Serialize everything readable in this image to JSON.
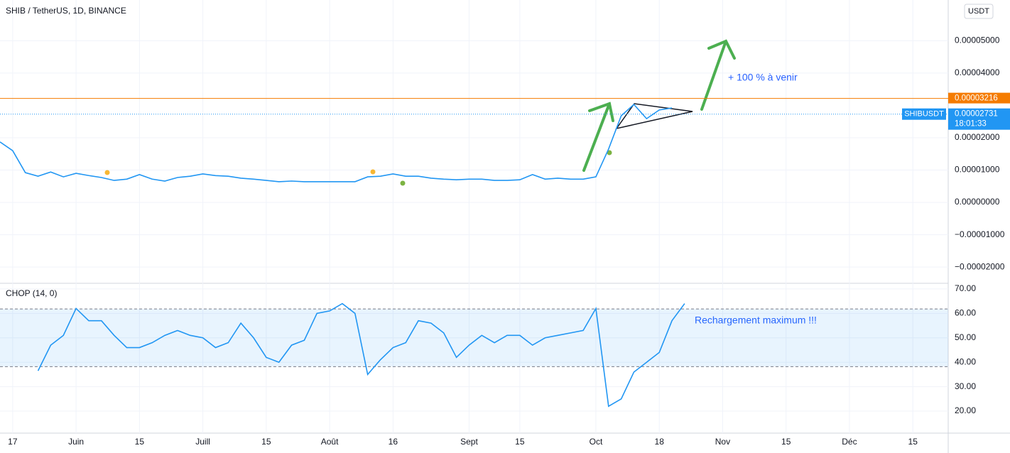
{
  "header": {
    "title": "SHIB / TetherUS, 1D, BINANCE",
    "currency": "USDT"
  },
  "chart_data": [
    {
      "type": "line",
      "name": "SHIBUSDT",
      "categories": [
        null,
        "17",
        null,
        null,
        null,
        null,
        "Juin",
        null,
        null,
        null,
        null,
        "15",
        null,
        null,
        null,
        null,
        "Juill",
        null,
        null,
        null,
        null,
        "15",
        null,
        null,
        null,
        null,
        "Août",
        null,
        null,
        null,
        null,
        "16",
        null,
        null,
        null,
        null,
        null,
        "Sept",
        null,
        null,
        null,
        "15",
        null,
        null,
        null,
        null,
        null,
        "Oct",
        null,
        null,
        null,
        null,
        "18",
        null,
        null,
        null,
        null,
        "Nov",
        null,
        null,
        null,
        null,
        "15",
        null,
        null,
        null,
        null,
        "Déc",
        null,
        null,
        null,
        null,
        "15",
        null,
        null,
        null,
        null
      ],
      "series": [
        {
          "name": "SHIBUSDT",
          "color": "#2196f3",
          "values": [
            1.87e-05,
            1.6e-05,
            9.2e-06,
            8.1e-06,
            9.4e-06,
            7.9e-06,
            9e-06,
            8.3e-06,
            7.7e-06,
            6.8e-06,
            7.2e-06,
            8.6e-06,
            7.2e-06,
            6.6e-06,
            7.7e-06,
            8.1e-06,
            8.8e-06,
            8.3e-06,
            8.1e-06,
            7.5e-06,
            7.2e-06,
            6.8e-06,
            6.4e-06,
            6.6e-06,
            6.4e-06,
            6.4e-06,
            6.4e-06,
            6.4e-06,
            6.4e-06,
            7.9e-06,
            8.1e-06,
            8.8e-06,
            8.1e-06,
            8.1e-06,
            7.5e-06,
            7.2e-06,
            7e-06,
            7.2e-06,
            7.2e-06,
            6.8e-06,
            6.8e-06,
            7e-06,
            8.6e-06,
            7.2e-06,
            7.5e-06,
            7.2e-06,
            7.2e-06,
            7.9e-06,
            1.65e-05,
            2.68e-05,
            3.03e-05,
            2.59e-05,
            2.86e-05,
            2.92e-05,
            null,
            null,
            null,
            null,
            null,
            null,
            null,
            null,
            null,
            null,
            null,
            null,
            null,
            null,
            null,
            null,
            null,
            null,
            null,
            null,
            null,
            null,
            null
          ]
        }
      ],
      "ylim": [
        -2.48e-05,
        6.26e-05
      ],
      "yticks": [
        {
          "value": 5e-05,
          "label": "0.00005000"
        },
        {
          "value": 4e-05,
          "label": "0.00004000"
        },
        {
          "value": 2e-05,
          "label": "0.00002000"
        },
        {
          "value": 1e-05,
          "label": "0.00001000"
        },
        {
          "value": 0,
          "label": "0.00000000"
        },
        {
          "value": -1e-05,
          "label": "−0.00001000"
        },
        {
          "value": -2e-05,
          "label": "−0.00002000"
        }
      ],
      "grid": true,
      "price_lines": [
        {
          "value": 3.216e-05,
          "color": "#f57c00"
        },
        {
          "value": 2.731e-05,
          "color": "#2196f3",
          "name": "SHIBUSDT",
          "countdown": "18:01:33"
        }
      ],
      "annotation": "+ 100 % à venir"
    },
    {
      "type": "line",
      "title": "CHOP (14, 0)",
      "series": [
        {
          "name": "CHOP",
          "color": "#2196f3",
          "values": [
            null,
            null,
            null,
            36.5,
            47,
            51,
            62,
            57,
            57,
            51,
            46,
            46,
            48,
            51,
            53,
            51,
            50,
            46,
            48,
            56,
            50,
            42,
            40,
            47,
            49,
            60,
            61,
            64,
            60,
            35,
            41,
            46,
            48,
            57,
            56,
            52,
            42,
            47,
            51,
            48,
            51,
            51,
            47,
            50,
            51,
            52,
            53,
            62,
            22,
            25,
            36,
            40,
            44,
            57,
            64,
            null,
            null,
            null,
            null,
            null,
            null,
            null,
            null,
            null,
            null,
            null,
            null,
            null,
            null,
            null,
            null,
            null,
            null,
            null,
            null,
            null,
            null
          ]
        }
      ],
      "ylim": [
        11.3,
        72.3
      ],
      "yticks": [
        {
          "value": 70,
          "label": "70.00"
        },
        {
          "value": 60,
          "label": "60.00"
        },
        {
          "value": 50,
          "label": "50.00"
        },
        {
          "value": 40,
          "label": "40.00"
        },
        {
          "value": 30,
          "label": "30.00"
        },
        {
          "value": 20,
          "label": "20.00"
        }
      ],
      "bands": [
        38.2,
        61.8
      ],
      "annotation": "Rechargement maximum !!!"
    }
  ]
}
